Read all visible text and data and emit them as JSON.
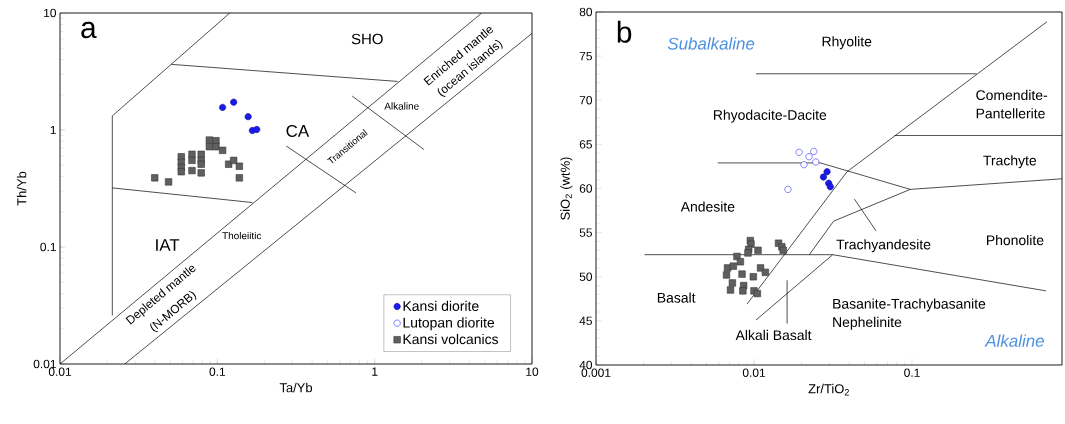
{
  "chart_data": [
    {
      "type": "scatter",
      "title": "a",
      "xlabel": "Ta/Yb",
      "ylabel": "Th/Yb",
      "log": "xy",
      "xlim": [
        0.01,
        10
      ],
      "ylim": [
        0.01,
        10
      ],
      "xticks": [
        0.01,
        0.1,
        1,
        10
      ],
      "yticks": [
        0.01,
        0.1,
        1,
        10
      ],
      "legend": "bottom right",
      "series": [
        {
          "type": "line",
          "color": "#000000",
          "x": [
            0.0215,
            0.0215,
            0.12
          ],
          "values": [
            0.026,
            1.32,
            10
          ]
        },
        {
          "type": "line",
          "color": "#000000",
          "x": [
            0.051,
            1.4
          ],
          "values": [
            3.64,
            2.6
          ]
        },
        {
          "type": "line",
          "color": "#000000",
          "x": [
            0.0215,
            0.167
          ],
          "values": [
            0.32,
            0.24
          ]
        },
        {
          "type": "line",
          "color": "#000000",
          "x": [
            0.01,
            4.79
          ],
          "values": [
            0.01,
            10
          ]
        },
        {
          "type": "line",
          "color": "#000000",
          "x": [
            0.0258,
            10
          ],
          "values": [
            0.01,
            6.7
          ]
        },
        {
          "type": "line",
          "color": "#000000",
          "x": [
            0.274,
            0.76
          ],
          "values": [
            0.73,
            0.29
          ]
        },
        {
          "type": "line",
          "color": "#000000",
          "x": [
            0.72,
            2.06
          ],
          "values": [
            1.95,
            0.68
          ]
        },
        {
          "name": "Kansi diorite",
          "color": "#1a1aee",
          "marker": "circle",
          "x": [
            0.108,
            0.127,
            0.157,
            0.167,
            0.178
          ],
          "values": [
            1.56,
            1.73,
            1.3,
            0.99,
            1.01
          ]
        },
        {
          "name": "Lutopan diorite",
          "color": "#3333ff",
          "marker": "circle"
        },
        {
          "name": "Kansi volcanics",
          "color": "#5f5f5f",
          "marker": "square",
          "x": [
            0.04,
            0.049,
            0.059,
            0.059,
            0.059,
            0.059,
            0.069,
            0.069,
            0.069,
            0.079,
            0.079,
            0.079,
            0.079,
            0.089,
            0.089,
            0.098,
            0.098,
            0.108,
            0.118,
            0.127,
            0.138,
            0.138
          ],
          "values": [
            0.39,
            0.36,
            0.59,
            0.53,
            0.48,
            0.44,
            0.62,
            0.55,
            0.45,
            0.62,
            0.55,
            0.51,
            0.43,
            0.82,
            0.72,
            0.81,
            0.72,
            0.67,
            0.51,
            0.55,
            0.49,
            0.39
          ]
        }
      ],
      "annotations": [
        "SHO",
        "CA",
        "IAT",
        "Alkaline",
        "Transitional",
        "Tholeiitic",
        "Enriched mantle",
        "(ocean islands)",
        "Depleted mantle",
        "(N-MORB)"
      ]
    },
    {
      "type": "scatter",
      "title": "b",
      "xlabel": "Zr/TiO$_{2}$",
      "ylabel": "SiO$_{2}$ (wt%)",
      "log": "x",
      "xlim": [
        0.001,
        0.89
      ],
      "ylim": [
        40,
        80
      ],
      "xticks": [
        0.001,
        0.01,
        0.1
      ],
      "yticks": [
        40,
        45,
        50,
        55,
        60,
        65,
        70,
        75,
        80
      ],
      "series": [
        {
          "type": "line",
          "color": "#000000",
          "x": [
            0.0103,
            0.256
          ],
          "values": [
            73.0,
            73.0
          ]
        },
        {
          "type": "line",
          "color": "#000000",
          "x": [
            0.00903,
            0.0388,
            0.715
          ],
          "values": [
            46.9,
            61.9,
            78.9
          ]
        },
        {
          "type": "line",
          "color": "#000000",
          "x": [
            0.00589,
            0.0263,
            0.0975,
            0.89
          ],
          "values": [
            62.9,
            62.9,
            59.9,
            61.1
          ]
        },
        {
          "type": "line",
          "color": "#000000",
          "x": [
            0.0775,
            0.89
          ],
          "values": [
            66.0,
            66.0
          ]
        },
        {
          "type": "line",
          "color": "#000000",
          "x": [
            0.0975,
            0.0319,
            0.0224
          ],
          "values": [
            59.9,
            56.3,
            52.5
          ]
        },
        {
          "type": "line",
          "color": "#000000",
          "x": [
            0.00203,
            0.0315,
            0.705
          ],
          "values": [
            52.5,
            52.5,
            48.4
          ]
        },
        {
          "type": "line",
          "color": "#000000",
          "x": [
            0.0103,
            0.0315
          ],
          "values": [
            45.1,
            52.5
          ]
        },
        {
          "type": "line",
          "color": "#000000",
          "x": [
            0.0162,
            0.0162
          ],
          "values": [
            49.6,
            44.7
          ]
        },
        {
          "type": "line",
          "color": "#000000",
          "x": [
            0.0432,
            0.0592
          ],
          "values": [
            58.8,
            55.2
          ]
        },
        {
          "color": "#1a1aee",
          "marker": "circle",
          "x": [
            0.029,
            0.0275,
            0.0297,
            0.0304
          ],
          "values": [
            61.9,
            61.3,
            60.6,
            60.2
          ]
        },
        {
          "color": "#3333ff",
          "marker": "circle",
          "x": [
            0.0193,
            0.0239,
            0.0223,
            0.0207,
            0.0246,
            0.0164
          ],
          "values": [
            64.1,
            64.2,
            63.6,
            62.7,
            63.0,
            59.9
          ]
        },
        {
          "color": "#5f5f5f",
          "marker": "square",
          "x": [
            0.00948,
            0.00957,
            0.00925,
            0.00916,
            0.0106,
            0.0078,
            0.0082,
            0.0143,
            0.015,
            0.0153,
            0.0068,
            0.0074,
            0.0067,
            0.0084,
            0.0099,
            0.011,
            0.0118,
            0.0073,
            0.0086,
            0.0071,
            0.0085,
            0.01,
            0.0105
          ],
          "values": [
            54.1,
            53.7,
            53.1,
            52.7,
            53.0,
            52.3,
            51.7,
            53.8,
            53.4,
            53.0,
            51.0,
            51.2,
            50.2,
            50.3,
            50.0,
            51.0,
            50.5,
            49.3,
            49.0,
            48.5,
            48.4,
            48.4,
            48.1
          ]
        }
      ],
      "annotations": [
        "Subalkaline",
        "Rhyolite",
        "Comendite-",
        "Pantellerite",
        "Rhyodacite-Dacite",
        "Trachyte",
        "Andesite",
        "Phonolite",
        "Trachyandesite",
        "Basalt",
        "Basanite-Trachybasanite",
        "Nephelinite",
        "Alkali Basalt",
        "Alkaline"
      ]
    }
  ]
}
